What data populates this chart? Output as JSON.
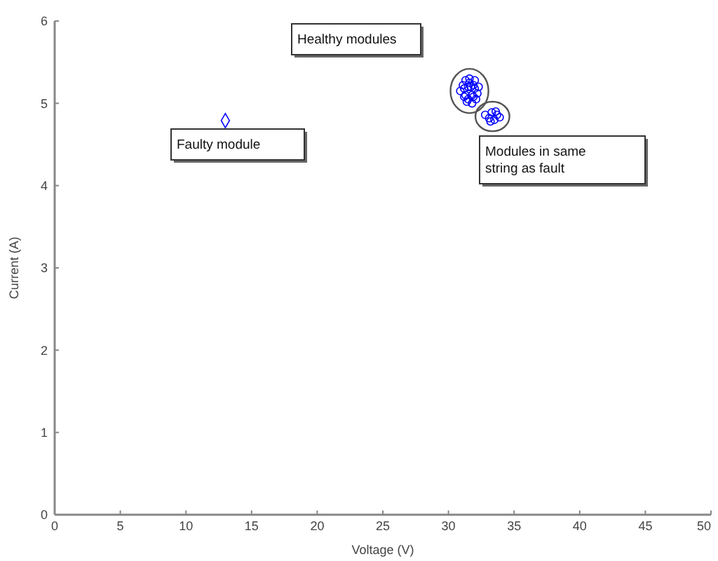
{
  "chart_data": {
    "type": "scatter",
    "xlabel": "Voltage (V)",
    "ylabel": "Current (A)",
    "xlim": [
      0,
      50
    ],
    "xticks": [
      0,
      5,
      10,
      15,
      20,
      25,
      30,
      35,
      40,
      45,
      50
    ],
    "ylim": [
      0,
      6
    ],
    "yticks": [
      0,
      1,
      2,
      3,
      4,
      5,
      6
    ],
    "grid": false,
    "series": [
      {
        "color": "#0000ff",
        "marker": "diamond",
        "x": [
          13.0
        ],
        "values": [
          4.79
        ]
      },
      {
        "color": "#0000ff",
        "marker": "circle",
        "x": [
          30.9,
          31.1,
          31.2,
          31.3,
          31.5,
          31.5,
          31.6,
          31.8,
          31.9,
          32.0,
          32.1,
          32.2,
          31.2,
          31.4,
          31.6,
          31.8,
          32.0,
          31.3,
          31.7,
          31.9,
          32.3
        ],
        "values": [
          5.15,
          5.22,
          5.08,
          5.28,
          5.2,
          5.05,
          5.25,
          5.1,
          5.22,
          5.18,
          5.05,
          5.12,
          5.18,
          5.02,
          5.3,
          5.0,
          5.28,
          5.1,
          5.2,
          5.08,
          5.2
        ]
      },
      {
        "color": "#0000ff",
        "marker": "circle",
        "x": [
          32.8,
          33.1,
          33.3,
          33.5,
          33.7,
          33.9,
          33.2,
          33.6
        ],
        "values": [
          4.86,
          4.82,
          4.89,
          4.8,
          4.86,
          4.83,
          4.78,
          4.9
        ]
      }
    ],
    "annotations": [
      "Healthy modules",
      "Faulty module",
      "Modules in same string as fault"
    ]
  }
}
